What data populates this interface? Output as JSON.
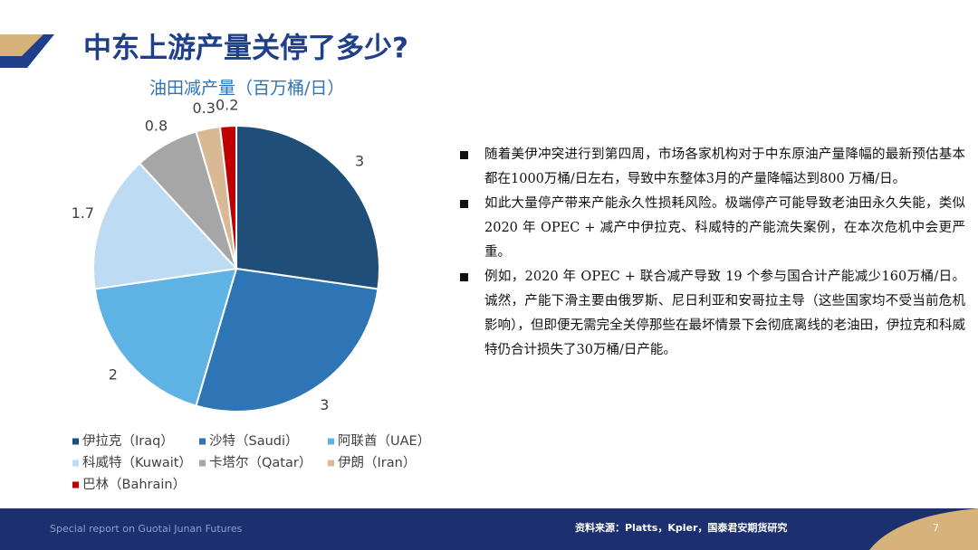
{
  "page": {
    "title": "中东上游产量关停了多少?",
    "bullets": [
      "随着美伊冲突进行到第四周，市场各家机构对于中东原油产量降幅的最新预估基本都在1000万桶/日左右，导致中东整体3月的产量降幅达到800 万桶/日。",
      "如此大量停产带来产能永久性损耗风险。极端停产可能导致老油田永久失能，类似 2020 年 OPEC + 减产中伊拉克、科威特的产能流失案例，在本次危机中会更严重。",
      "例如，2020 年 OPEC + 联合减产导致 19 个参与国合计产能减少160万桶/日。诚然，产能下滑主要由俄罗斯、尼日利亚和安哥拉主导（这些国家均不受当前危机影响），但即便无需完全关停那些在最坏情景下会彻底离线的老油田，伊拉克和科威特仍合计损失了30万桶/日产能。"
    ],
    "footer_left": "Special report on Guotai Junan Futures",
    "source": "资料来源：Platts，Kpler，国泰君安期货研究",
    "page_number": "7"
  },
  "chart_data": {
    "type": "pie",
    "title": "油田减产量（百万桶/日）",
    "categories": [
      "伊拉克（Iraq）",
      "沙特（Saudi）",
      "阿联酋（UAE）",
      "科威特（Kuwait）",
      "卡塔尔（Qatar）",
      "伊朗（Iran）",
      "巴林（Bahrain）"
    ],
    "values": [
      3,
      3,
      2,
      1.7,
      0.8,
      0.3,
      0.2
    ],
    "colors": [
      "#1f4e79",
      "#2e75b6",
      "#5fb2e4",
      "#bddcf3",
      "#a6a6a6",
      "#d9b894",
      "#c00000"
    ],
    "legend": "bottom"
  }
}
